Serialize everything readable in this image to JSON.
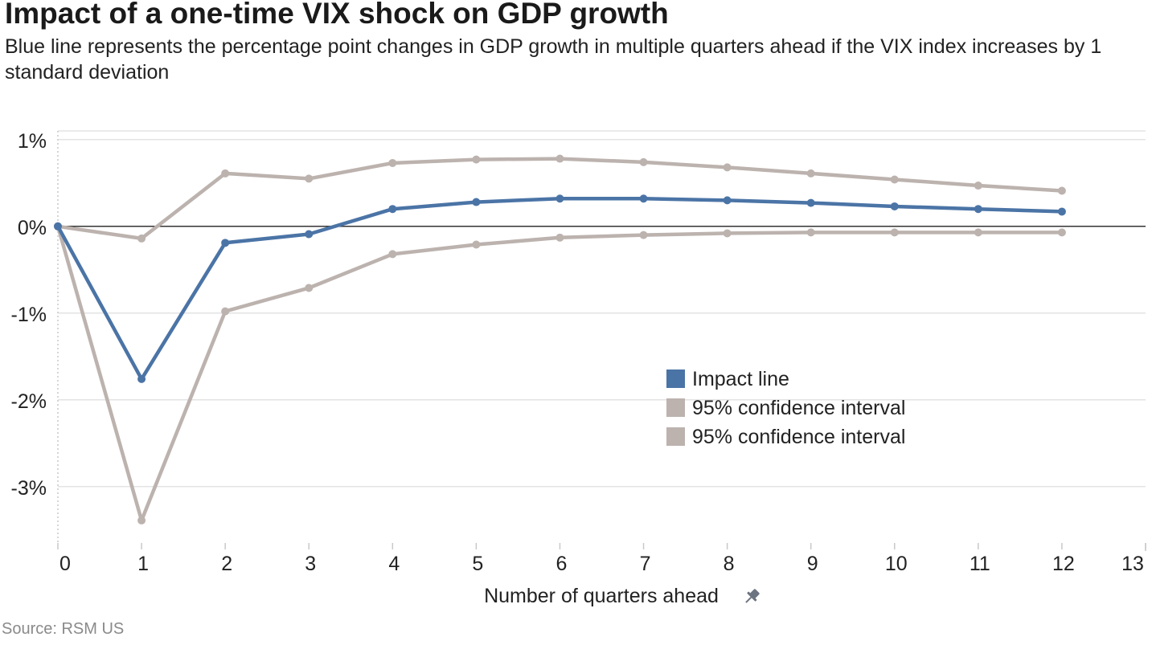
{
  "title": "Impact of a one-time VIX shock on GDP growth",
  "subtitle": "Blue line represents the percentage point changes in GDP growth in multiple quarters ahead if the VIX index increases by 1 standard deviation",
  "source": "Source: RSM US",
  "icons": {
    "xlabel_icon": "pin-icon"
  },
  "chart_data": {
    "type": "line",
    "xlabel": "Number of quarters ahead",
    "ylabel": "",
    "x": [
      0,
      1,
      2,
      3,
      4,
      5,
      6,
      7,
      8,
      9,
      10,
      11,
      12
    ],
    "xlim": [
      0,
      13
    ],
    "ylim": [
      -3.65,
      1.1
    ],
    "xticks": [
      0,
      1,
      2,
      3,
      4,
      5,
      6,
      7,
      8,
      9,
      10,
      11,
      12,
      13
    ],
    "yticks": [
      -3,
      -2,
      -1,
      0,
      1
    ],
    "ytick_labels": [
      "-3%",
      "-2%",
      "-1%",
      "0%",
      "1%"
    ],
    "grid": true,
    "legend_position": "center-right",
    "series": [
      {
        "name": "Impact line",
        "color": "#4b74a6",
        "values": [
          0,
          -1.76,
          -0.19,
          -0.09,
          0.2,
          0.28,
          0.32,
          0.32,
          0.3,
          0.27,
          0.23,
          0.2,
          0.17
        ]
      },
      {
        "name": "95% confidence interval",
        "color": "#bcb2ae",
        "values": [
          0,
          -0.14,
          0.61,
          0.55,
          0.73,
          0.77,
          0.78,
          0.74,
          0.68,
          0.61,
          0.54,
          0.47,
          0.41
        ]
      },
      {
        "name": "95% confidence interval",
        "color": "#bcb2ae",
        "values": [
          0,
          -3.39,
          -0.98,
          -0.71,
          -0.32,
          -0.21,
          -0.13,
          -0.1,
          -0.08,
          -0.07,
          -0.07,
          -0.07,
          -0.07
        ]
      }
    ]
  }
}
